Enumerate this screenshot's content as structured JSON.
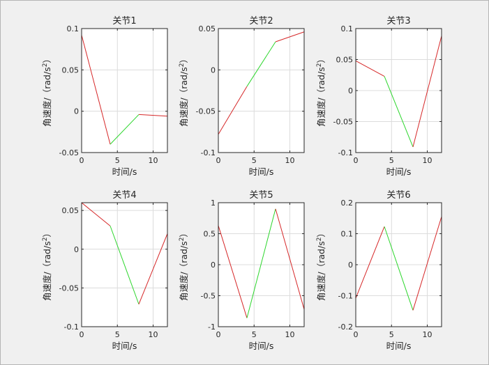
{
  "chart_data": [
    {
      "type": "line",
      "title": "关节1",
      "xlabel": "时间/s",
      "ylabel": "角速度/（rad/s",
      "ylabel_sup": "2",
      "ylabel_suffix": "）",
      "xlim": [
        0,
        12
      ],
      "ylim": [
        -0.05,
        0.1
      ],
      "xticks": [
        0,
        5,
        10
      ],
      "xtick_labels": [
        "0",
        "5",
        "10"
      ],
      "yticks": [
        -0.05,
        0,
        0.05,
        0.1
      ],
      "ytick_labels": [
        "-0.05",
        "0",
        "0.05",
        "0.1"
      ],
      "grid": true,
      "series": [
        {
          "color": "#d62728",
          "x": [
            0,
            4
          ],
          "y": [
            0.092,
            -0.04
          ]
        },
        {
          "color": "#2bd62b",
          "x": [
            4,
            8
          ],
          "y": [
            -0.04,
            -0.004
          ]
        },
        {
          "color": "#d62728",
          "x": [
            8,
            12
          ],
          "y": [
            -0.004,
            -0.006
          ]
        }
      ]
    },
    {
      "type": "line",
      "title": "关节2",
      "xlabel": "时间/s",
      "ylabel": "角速度/（rad/s",
      "ylabel_sup": "2",
      "ylabel_suffix": "）",
      "xlim": [
        0,
        12
      ],
      "ylim": [
        -0.1,
        0.05
      ],
      "xticks": [
        0,
        5,
        10
      ],
      "xtick_labels": [
        "0",
        "5",
        "10"
      ],
      "yticks": [
        -0.1,
        -0.05,
        0,
        0.05
      ],
      "ytick_labels": [
        "-0.1",
        "-0.05",
        "0",
        "0.05"
      ],
      "grid": true,
      "series": [
        {
          "color": "#d62728",
          "x": [
            0,
            4
          ],
          "y": [
            -0.078,
            -0.02
          ]
        },
        {
          "color": "#2bd62b",
          "x": [
            4,
            8
          ],
          "y": [
            -0.02,
            0.034
          ]
        },
        {
          "color": "#d62728",
          "x": [
            8,
            12
          ],
          "y": [
            0.034,
            0.046
          ]
        }
      ]
    },
    {
      "type": "line",
      "title": "关节3",
      "xlabel": "时间/s",
      "ylabel": "角速度/（rad/s",
      "ylabel_sup": "2",
      "ylabel_suffix": "）",
      "xlim": [
        0,
        12
      ],
      "ylim": [
        -0.1,
        0.1
      ],
      "xticks": [
        0,
        5,
        10
      ],
      "xtick_labels": [
        "0",
        "5",
        "10"
      ],
      "yticks": [
        -0.1,
        -0.05,
        0,
        0.05,
        0.1
      ],
      "ytick_labels": [
        "-0.1",
        "-0.05",
        "0",
        "0.05",
        "0.1"
      ],
      "grid": true,
      "series": [
        {
          "color": "#d62728",
          "x": [
            0,
            4
          ],
          "y": [
            0.048,
            0.023
          ]
        },
        {
          "color": "#2bd62b",
          "x": [
            4,
            8
          ],
          "y": [
            0.023,
            -0.091
          ]
        },
        {
          "color": "#d62728",
          "x": [
            8,
            12
          ],
          "y": [
            -0.091,
            0.088
          ]
        }
      ]
    },
    {
      "type": "line",
      "title": "关节4",
      "xlabel": "时间/s",
      "ylabel": "角速度/（rad/s",
      "ylabel_sup": "2",
      "ylabel_suffix": "）",
      "xlim": [
        0,
        12
      ],
      "ylim": [
        -0.1,
        0.06
      ],
      "xticks": [
        0,
        5,
        10
      ],
      "xtick_labels": [
        "0",
        "5",
        "10"
      ],
      "yticks": [
        -0.1,
        -0.05,
        0,
        0.05
      ],
      "ytick_labels": [
        "-0.1",
        "-0.05",
        "0",
        "0.05"
      ],
      "grid": true,
      "series": [
        {
          "color": "#d62728",
          "x": [
            0,
            4
          ],
          "y": [
            0.06,
            0.03
          ]
        },
        {
          "color": "#2bd62b",
          "x": [
            4,
            8
          ],
          "y": [
            0.03,
            -0.071
          ]
        },
        {
          "color": "#d62728",
          "x": [
            8,
            12
          ],
          "y": [
            -0.071,
            0.02
          ]
        }
      ]
    },
    {
      "type": "line",
      "title": "关节5",
      "xlabel": "时间/s",
      "ylabel": "角速度/（rad/s",
      "ylabel_sup": "2",
      "ylabel_suffix": "）",
      "xlim": [
        0,
        12
      ],
      "ylim": [
        -1,
        1
      ],
      "xticks": [
        0,
        5,
        10
      ],
      "xtick_labels": [
        "0",
        "5",
        "10"
      ],
      "yticks": [
        -1,
        -0.5,
        0,
        0.5,
        1
      ],
      "ytick_labels": [
        "-1",
        "-0.5",
        "0",
        "0.5",
        "1"
      ],
      "grid": true,
      "series": [
        {
          "color": "#d62728",
          "x": [
            0,
            4
          ],
          "y": [
            0.63,
            -0.86
          ]
        },
        {
          "color": "#2bd62b",
          "x": [
            4,
            8
          ],
          "y": [
            -0.86,
            0.9
          ]
        },
        {
          "color": "#d62728",
          "x": [
            8,
            12
          ],
          "y": [
            0.9,
            -0.72
          ]
        }
      ]
    },
    {
      "type": "line",
      "title": "关节6",
      "xlabel": "时间/s",
      "ylabel": "角速度/（rad/s",
      "ylabel_sup": "2",
      "ylabel_suffix": "）",
      "xlim": [
        0,
        12
      ],
      "ylim": [
        -0.2,
        0.2
      ],
      "xticks": [
        0,
        5,
        10
      ],
      "xtick_labels": [
        "0",
        "5",
        "10"
      ],
      "yticks": [
        -0.2,
        -0.1,
        0,
        0.1,
        0.2
      ],
      "ytick_labels": [
        "-0.2",
        "-0.1",
        "0",
        "0.1",
        "0.2"
      ],
      "grid": true,
      "series": [
        {
          "color": "#d62728",
          "x": [
            0,
            4
          ],
          "y": [
            -0.108,
            0.123
          ]
        },
        {
          "color": "#2bd62b",
          "x": [
            4,
            8
          ],
          "y": [
            0.123,
            -0.147
          ]
        },
        {
          "color": "#d62728",
          "x": [
            8,
            12
          ],
          "y": [
            -0.147,
            0.155
          ]
        }
      ]
    }
  ]
}
